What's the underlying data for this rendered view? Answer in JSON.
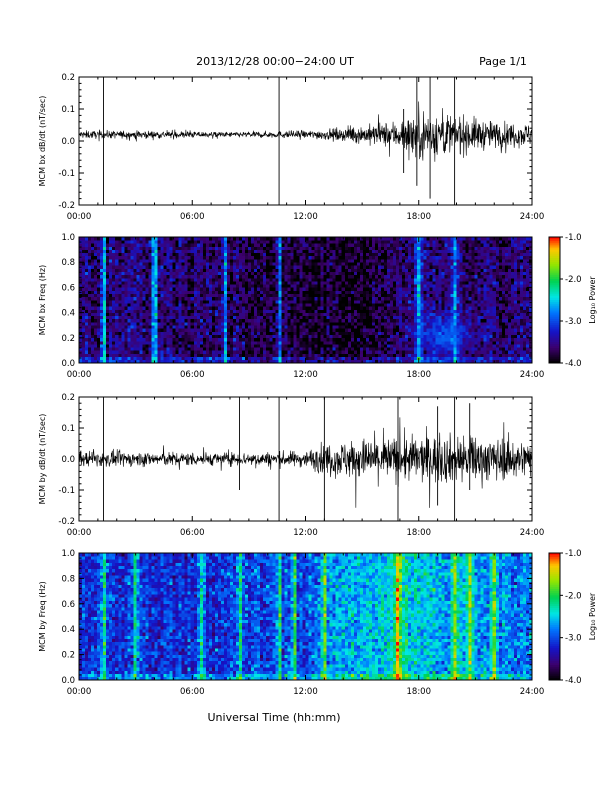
{
  "header": {
    "date_range": "2013/12/28   00:00−24:00 UT",
    "page": "Page 1/1"
  },
  "footer": {
    "xlabel": "Universal Time (hh:mm)"
  },
  "colorbar": {
    "label": "Log₁₀ Power",
    "ticks": [
      "-1.0",
      "-2.0",
      "-3.0",
      "-4.0"
    ],
    "range": [
      -4.0,
      -1.0
    ],
    "colormap": "rainbow (black-purple-blue-cyan-green-yellow-red)"
  },
  "chart_data": [
    {
      "type": "line",
      "ylabel": "MCM bx dB/dt (nT/sec)",
      "x_ticks": [
        "00:00",
        "06:00",
        "12:00",
        "18:00",
        "24:00"
      ],
      "y_ticks": [
        "-0.2",
        "-0.1",
        "0.0",
        "0.1",
        "0.2"
      ],
      "xlim_hours": [
        0,
        24
      ],
      "ylim": [
        -0.2,
        0.2
      ],
      "baseline": 0.02,
      "noise_amplitude_by_hour": [
        [
          0,
          0.012
        ],
        [
          4,
          0.012
        ],
        [
          8,
          0.008
        ],
        [
          12,
          0.012
        ],
        [
          14,
          0.02
        ],
        [
          16,
          0.035
        ],
        [
          17,
          0.045
        ],
        [
          18,
          0.08
        ],
        [
          19,
          0.07
        ],
        [
          20,
          0.06
        ],
        [
          22,
          0.04
        ],
        [
          24,
          0.035
        ]
      ],
      "spikes": [
        [
          1.3,
          -0.2,
          0.2
        ],
        [
          10.6,
          -0.2,
          0.2
        ],
        [
          17.9,
          -0.14,
          0.2
        ],
        [
          18.6,
          -0.18,
          0.2
        ],
        [
          19.9,
          -0.2,
          0.2
        ],
        [
          17.2,
          -0.1,
          0.1
        ]
      ]
    },
    {
      "type": "heatmap",
      "ylabel": "MCM bx Freq (Hz)",
      "x_ticks": [
        "00:00",
        "06:00",
        "12:00",
        "18:00",
        "24:00"
      ],
      "y_ticks": [
        "0.0",
        "0.2",
        "0.4",
        "0.6",
        "0.8",
        "1.0"
      ],
      "xlim_hours": [
        0,
        24
      ],
      "ylim": [
        0.0,
        1.0
      ],
      "zlim": [
        -4.0,
        -1.0
      ],
      "background_log_power_by_hour": [
        [
          0,
          -3.55
        ],
        [
          5,
          -3.6
        ],
        [
          9,
          -3.75
        ],
        [
          12,
          -3.85
        ],
        [
          16,
          -3.8
        ],
        [
          18,
          -3.55
        ],
        [
          24,
          -3.65
        ]
      ],
      "bright_columns_hours": [
        1.3,
        4.0,
        7.7,
        10.6,
        18.0,
        19.9
      ],
      "enhancement": {
        "center_hours": 19.4,
        "center_freq_hz": 0.22,
        "log_power": -2.9
      }
    },
    {
      "type": "line",
      "ylabel": "MCM by dB/dt (nT/sec)",
      "x_ticks": [
        "00:00",
        "06:00",
        "12:00",
        "18:00",
        "24:00"
      ],
      "y_ticks": [
        "-0.2",
        "-0.1",
        "0.0",
        "0.1",
        "0.2"
      ],
      "xlim_hours": [
        0,
        24
      ],
      "ylim": [
        -0.2,
        0.2
      ],
      "baseline": 0.0,
      "noise_amplitude_by_hour": [
        [
          0,
          0.025
        ],
        [
          8,
          0.02
        ],
        [
          12,
          0.025
        ],
        [
          13,
          0.05
        ],
        [
          15,
          0.065
        ],
        [
          18,
          0.075
        ],
        [
          21,
          0.075
        ],
        [
          24,
          0.055
        ]
      ],
      "spikes": [
        [
          1.3,
          -0.2,
          0.2
        ],
        [
          8.5,
          -0.1,
          0.2
        ],
        [
          10.6,
          -0.2,
          0.2
        ],
        [
          13.0,
          -0.2,
          0.2
        ],
        [
          16.9,
          -0.2,
          0.2
        ],
        [
          19.9,
          -0.2,
          0.2
        ],
        [
          20.7,
          -0.1,
          0.18
        ],
        [
          19.0,
          -0.15,
          0.17
        ]
      ]
    },
    {
      "type": "heatmap",
      "ylabel": "MCM by Freq (Hz)",
      "x_ticks": [
        "00:00",
        "06:00",
        "12:00",
        "18:00",
        "24:00"
      ],
      "y_ticks": [
        "0.0",
        "0.2",
        "0.4",
        "0.6",
        "0.8",
        "1.0"
      ],
      "xlim_hours": [
        0,
        24
      ],
      "ylim": [
        0.0,
        1.0
      ],
      "zlim": [
        -4.0,
        -1.0
      ],
      "background_log_power_by_hour": [
        [
          0,
          -3.1
        ],
        [
          5,
          -3.15
        ],
        [
          8,
          -3.05
        ],
        [
          12,
          -3.0
        ],
        [
          13,
          -2.7
        ],
        [
          16,
          -2.5
        ],
        [
          17,
          -2.3
        ],
        [
          19,
          -2.6
        ],
        [
          22,
          -2.75
        ],
        [
          24,
          -2.9
        ]
      ],
      "bright_columns_hours": [
        1.3,
        3.0,
        6.5,
        8.5,
        10.6,
        11.4,
        13.0,
        16.9,
        19.9,
        20.7,
        22.0
      ]
    }
  ]
}
